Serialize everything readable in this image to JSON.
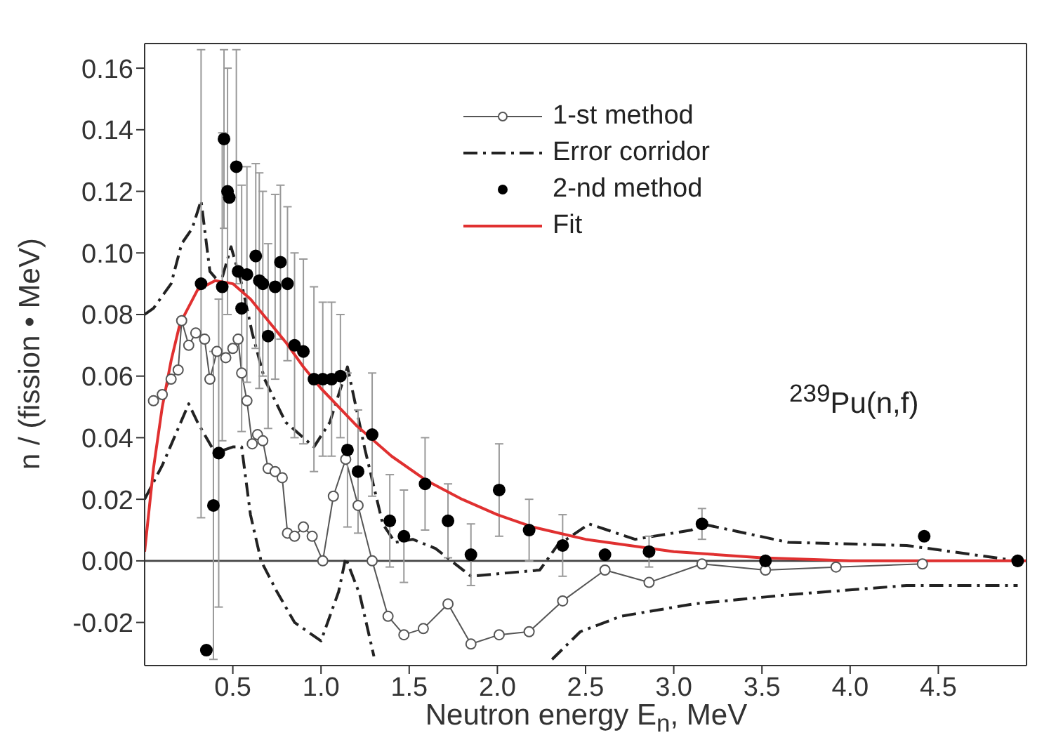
{
  "chart_data": {
    "type": "line",
    "xlabel": "Neutron energy E$_{n}$, MeV",
    "ylabel": "n / (fission • MeV)",
    "annotations": [
      "$^{239}$Pu(n,f)"
    ],
    "xlim": [
      0,
      5
    ],
    "ylim": [
      -0.034,
      0.168
    ],
    "xticks": [
      0.5,
      {
        "value": 1,
        "label": "1.0"
      },
      1.5,
      {
        "value": 2,
        "label": "2.0"
      },
      2.5,
      {
        "value": 3,
        "label": "3.0"
      },
      3.5,
      {
        "value": 4,
        "label": "4.0"
      },
      4.5
    ],
    "yticks": [
      {
        "value": -0.02,
        "label": "-0.02"
      },
      {
        "value": 0,
        "label": "0.00"
      },
      {
        "value": 0.02,
        "label": "0.02"
      },
      {
        "value": 0.04,
        "label": "0.04"
      },
      {
        "value": 0.06,
        "label": "0.06"
      },
      {
        "value": 0.08,
        "label": "0.08"
      },
      {
        "value": 0.1,
        "label": "0.10"
      },
      {
        "value": 0.12,
        "label": "0.12"
      },
      {
        "value": 0.14,
        "label": "0.14"
      },
      {
        "value": 0.16,
        "label": "0.16"
      }
    ],
    "legend": "top",
    "ref_lines": [
      {
        "axis": "y",
        "value": 0,
        "color": "#444444"
      }
    ],
    "series": [
      {
        "name": "1-st method",
        "color": "#555555",
        "marker": "circle",
        "line_style": "solid",
        "x": [
          0.05,
          0.1,
          0.15,
          0.19,
          0.21,
          0.25,
          0.29,
          0.34,
          0.37,
          0.41,
          0.46,
          0.5,
          0.53,
          0.55,
          0.58,
          0.61,
          0.64,
          0.67,
          0.7,
          0.74,
          0.78,
          0.81,
          0.85,
          0.9,
          0.95,
          1.01,
          1.07,
          1.14,
          1.21,
          1.29,
          1.38,
          1.47,
          1.58,
          1.72,
          1.85,
          2.01,
          2.18,
          2.37,
          2.61,
          2.86,
          3.16,
          3.52,
          3.92,
          4.41
        ],
        "values": [
          0.052,
          0.054,
          0.059,
          0.062,
          0.078,
          0.07,
          0.074,
          0.072,
          0.059,
          0.068,
          0.066,
          0.069,
          0.072,
          0.061,
          0.052,
          0.038,
          0.041,
          0.039,
          0.03,
          0.029,
          0.027,
          0.009,
          0.008,
          0.011,
          0.008,
          0.0,
          0.021,
          0.033,
          0.018,
          0.0,
          -0.018,
          -0.024,
          -0.022,
          -0.014,
          -0.027,
          -0.024,
          -0.023,
          -0.013,
          -0.003,
          -0.007,
          -0.001,
          -0.003,
          -0.002,
          -0.001
        ]
      },
      {
        "name": "Error corridor",
        "color": "#222222",
        "marker": "none",
        "line_style": "dashed",
        "x": [
          0.0,
          0.05,
          0.15,
          0.21,
          0.27,
          0.32,
          0.37,
          0.43,
          0.49,
          0.55,
          0.61,
          0.68,
          0.8,
          0.96,
          1.05,
          1.15,
          1.25,
          1.35,
          1.42,
          1.52,
          1.65,
          1.85,
          2.04,
          2.24,
          2.34,
          2.52,
          2.78,
          3.1,
          3.16,
          3.65,
          4.32,
          4.95
        ],
        "values": [
          0.08,
          0.082,
          0.09,
          0.103,
          0.108,
          0.117,
          0.094,
          0.09,
          0.102,
          0.09,
          0.074,
          0.059,
          0.045,
          0.037,
          0.045,
          0.063,
          0.036,
          0.012,
          0.006,
          0.007,
          0.004,
          -0.005,
          -0.004,
          -0.003,
          0.005,
          0.012,
          0.007,
          0.01,
          0.012,
          0.006,
          0.005,
          0.0
        ]
      },
      {
        "color": "#222222",
        "marker": "none",
        "line_style": "dashed",
        "x": [
          0.0,
          0.1,
          0.19,
          0.25,
          0.3,
          0.4,
          0.5,
          0.55,
          0.6,
          0.66,
          0.75,
          0.85,
          1.0,
          1.1,
          1.14,
          1.22,
          1.3,
          1.8,
          2.31,
          2.47,
          2.7,
          3.11,
          3.65,
          4.32,
          4.95
        ],
        "values": [
          0.02,
          0.031,
          0.043,
          0.051,
          0.045,
          0.035,
          0.037,
          0.037,
          0.015,
          0.0,
          -0.01,
          -0.02,
          -0.026,
          -0.01,
          0.001,
          -0.011,
          -0.031,
          null,
          -0.032,
          -0.023,
          -0.018,
          -0.014,
          -0.011,
          -0.008,
          -0.008
        ]
      },
      {
        "type": "scatter",
        "name": "2-nd method",
        "color": "#000000",
        "marker": "circle",
        "x": [
          0.32,
          0.35,
          0.39,
          0.42,
          0.44,
          0.45,
          0.47,
          0.48,
          0.52,
          0.53,
          0.55,
          0.58,
          0.63,
          0.65,
          0.67,
          0.7,
          0.74,
          0.77,
          0.81,
          0.85,
          0.9,
          0.96,
          1.01,
          1.06,
          1.11,
          1.15,
          1.21,
          1.29,
          1.39,
          1.47,
          1.59,
          1.72,
          1.85,
          2.01,
          2.18,
          2.37,
          2.61,
          2.86,
          3.16,
          3.52,
          4.42,
          4.95
        ],
        "values": [
          0.09,
          -0.029,
          0.018,
          0.035,
          0.089,
          0.137,
          0.12,
          0.118,
          0.128,
          0.094,
          0.082,
          0.093,
          0.099,
          0.091,
          0.09,
          0.073,
          0.089,
          0.097,
          0.09,
          0.07,
          0.068,
          0.059,
          0.059,
          0.059,
          0.06,
          0.036,
          0.029,
          0.041,
          0.013,
          0.008,
          0.025,
          0.013,
          0.002,
          0.023,
          0.01,
          0.005,
          0.002,
          0.003,
          0.012,
          0.0,
          0.008,
          0.0
        ],
        "errors": [
          0.076,
          null,
          0.05,
          0.05,
          0.05,
          0.029,
          0.04,
          null,
          0.038,
          null,
          0.04,
          0.035,
          0.03,
          0.035,
          0.03,
          0.03,
          0.03,
          0.025,
          0.025,
          0.03,
          0.03,
          0.03,
          0.025,
          0.025,
          0.02,
          0.025,
          0.02,
          0.02,
          0.015,
          0.015,
          0.015,
          0.012,
          0.01,
          0.015,
          0.01,
          0.01,
          null,
          0.005,
          0.005,
          null,
          null,
          null
        ]
      },
      {
        "name": "Fit",
        "color": "#e03030",
        "marker": "none",
        "line_style": "solid",
        "x": [
          0,
          0.05,
          0.1,
          0.15,
          0.2,
          0.3,
          0.4,
          0.5,
          0.6,
          0.7,
          0.8,
          0.9,
          1.0,
          1.2,
          1.4,
          1.6,
          1.8,
          2.0,
          2.2,
          2.5,
          3.0,
          3.5,
          4.0,
          5.0
        ],
        "values": [
          0.003,
          0.03,
          0.05,
          0.065,
          0.077,
          0.088,
          0.091,
          0.09,
          0.085,
          0.078,
          0.071,
          0.063,
          0.056,
          0.044,
          0.034,
          0.026,
          0.02,
          0.015,
          0.011,
          0.007,
          0.003,
          0.001,
          0.0,
          0.0
        ]
      }
    ]
  }
}
